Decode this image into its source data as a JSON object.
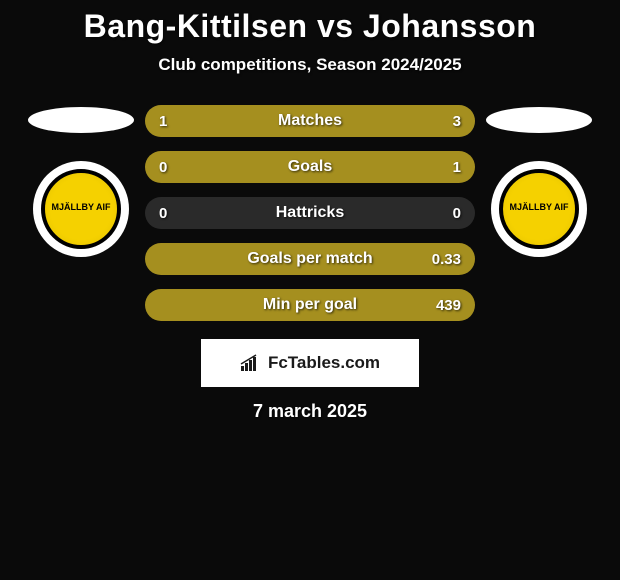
{
  "title": "Bang-Kittilsen vs Johansson",
  "subtitle": "Club competitions, Season 2024/2025",
  "date": "7 march 2025",
  "brand": "FcTables.com",
  "colors": {
    "bar_left": "#a58f1f",
    "bar_right": "#a58f1f",
    "bar_bg": "#2a2a2a",
    "badge_yellow": "#f5d100"
  },
  "badge_text": "MJÄLLBY\nAIF",
  "stats": [
    {
      "label": "Matches",
      "left_val": "1",
      "right_val": "3",
      "left_pct": 25,
      "right_pct": 75
    },
    {
      "label": "Goals",
      "left_val": "0",
      "right_val": "1",
      "left_pct": 0,
      "right_pct": 100
    },
    {
      "label": "Hattricks",
      "left_val": "0",
      "right_val": "0",
      "left_pct": 0,
      "right_pct": 0
    },
    {
      "label": "Goals per match",
      "left_val": "",
      "right_val": "0.33",
      "left_pct": 0,
      "right_pct": 100
    },
    {
      "label": "Min per goal",
      "left_val": "",
      "right_val": "439",
      "left_pct": 0,
      "right_pct": 100
    }
  ]
}
